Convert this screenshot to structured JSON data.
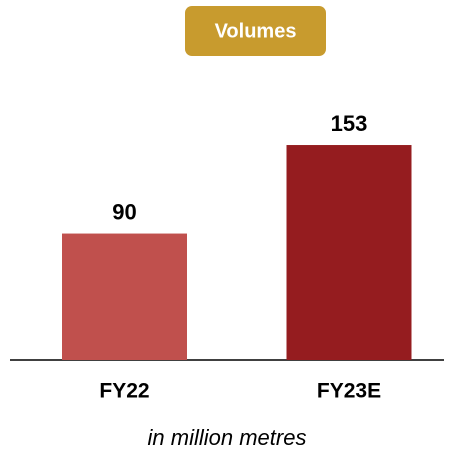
{
  "chart_data": {
    "type": "bar",
    "title": "Volumes",
    "xlabel": "in million metres",
    "categories": [
      "FY22",
      "FY23E"
    ],
    "values": [
      90,
      153
    ],
    "colors": [
      "#c0504d",
      "#951c1f"
    ],
    "title_color": "#c89b2e"
  }
}
